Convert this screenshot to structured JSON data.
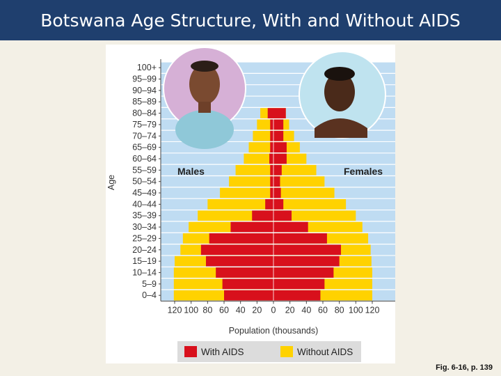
{
  "title": "Botswana Age Structure, With and Without AIDS",
  "caption": "Fig. 6-16, p. 139",
  "chart_data": {
    "type": "bar",
    "orientation": "horizontal-population-pyramid",
    "age_groups": [
      "0–4",
      "5–9",
      "10–14",
      "15–19",
      "20–24",
      "25–29",
      "30–34",
      "35–39",
      "40–44",
      "45–49",
      "50–54",
      "55–59",
      "60–64",
      "65–69",
      "70–74",
      "75–79",
      "80–84",
      "85–89",
      "90–94",
      "95–99",
      "100+"
    ],
    "ylabel": "Age",
    "xlabel": "Population (thousands)",
    "x_ticks": [
      "120",
      "100",
      "80",
      "60",
      "40",
      "20",
      "0",
      "20",
      "40",
      "60",
      "80",
      "100",
      "120"
    ],
    "xlim": [
      -120,
      120
    ],
    "left_label": "Males",
    "right_label": "Females",
    "series": [
      {
        "name": "Without AIDS",
        "color": "#ffd200",
        "males": [
          121,
          121,
          121,
          120,
          113,
          110,
          103,
          92,
          80,
          65,
          54,
          46,
          36,
          30,
          25,
          20,
          16,
          0,
          0,
          0,
          0
        ],
        "females": [
          120,
          120,
          120,
          119,
          118,
          115,
          108,
          100,
          88,
          74,
          62,
          52,
          40,
          32,
          25,
          19,
          15,
          0,
          0,
          0,
          0
        ]
      },
      {
        "name": "With AIDS",
        "color": "#d8101c",
        "males": [
          60,
          62,
          70,
          82,
          88,
          78,
          52,
          26,
          10,
          4,
          4,
          4,
          5,
          4,
          4,
          4,
          7,
          0,
          0,
          0,
          0
        ],
        "females": [
          57,
          62,
          73,
          80,
          82,
          65,
          42,
          22,
          12,
          9,
          8,
          10,
          16,
          16,
          12,
          12,
          15,
          0,
          0,
          0,
          0
        ]
      }
    ],
    "legend": [
      "With AIDS",
      "Without AIDS"
    ],
    "legend_position": "bottom",
    "grid": "horizontal"
  },
  "photos": [
    {
      "icon": "elderly-man-portrait",
      "background": "#d6b0d6"
    },
    {
      "icon": "young-woman-portrait",
      "background": "#bfe3ef"
    }
  ]
}
